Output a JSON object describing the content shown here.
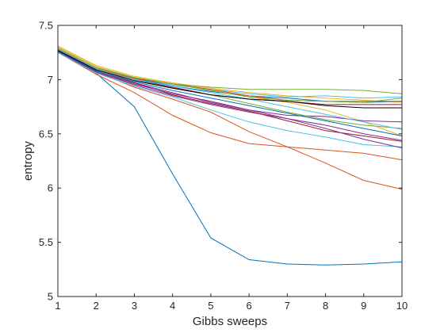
{
  "chart_data": {
    "type": "line",
    "title": "",
    "xlabel": "Gibbs sweeps",
    "ylabel": "entropy",
    "xlim": [
      1,
      10
    ],
    "ylim": [
      5,
      7.5
    ],
    "xticks": [
      "1",
      "2",
      "3",
      "4",
      "5",
      "6",
      "7",
      "8",
      "9",
      "10"
    ],
    "yticks": [
      "5",
      "5.5",
      "6",
      "6.5",
      "7",
      "7.5"
    ],
    "grid": false,
    "legend": "none",
    "x": [
      1,
      2,
      3,
      4,
      5,
      6,
      7,
      8,
      9,
      10
    ],
    "series": [
      {
        "color": "#0072BD",
        "values": [
          7.26,
          7.06,
          6.75,
          6.13,
          5.54,
          5.34,
          5.3,
          5.29,
          5.3,
          5.32
        ]
      },
      {
        "color": "#D95319",
        "values": [
          7.25,
          7.05,
          6.88,
          6.67,
          6.51,
          6.41,
          6.38,
          6.35,
          6.32,
          6.26
        ]
      },
      {
        "color": "#D95319",
        "values": [
          7.27,
          7.07,
          6.93,
          6.82,
          6.7,
          6.52,
          6.38,
          6.23,
          6.07,
          5.99
        ]
      },
      {
        "color": "#EDB120",
        "values": [
          7.3,
          7.12,
          7.02,
          6.96,
          6.9,
          6.84,
          6.79,
          6.72,
          6.61,
          6.48
        ]
      },
      {
        "color": "#EDB120",
        "values": [
          7.31,
          7.13,
          7.03,
          6.97,
          6.92,
          6.88,
          6.85,
          6.83,
          6.81,
          6.79
        ]
      },
      {
        "color": "#7E2F8E",
        "values": [
          7.25,
          7.08,
          6.97,
          6.88,
          6.79,
          6.72,
          6.67,
          6.66,
          6.62,
          6.61
        ]
      },
      {
        "color": "#7E2F8E",
        "values": [
          7.26,
          7.07,
          6.95,
          6.85,
          6.77,
          6.7,
          6.64,
          6.58,
          6.5,
          6.44
        ]
      },
      {
        "color": "#77AC30",
        "values": [
          7.28,
          7.11,
          7.02,
          6.96,
          6.93,
          6.91,
          6.91,
          6.91,
          6.9,
          6.87
        ]
      },
      {
        "color": "#77AC30",
        "values": [
          7.27,
          7.09,
          7.0,
          6.92,
          6.86,
          6.78,
          6.7,
          6.63,
          6.58,
          6.55
        ]
      },
      {
        "color": "#4DBEEE",
        "values": [
          7.28,
          7.1,
          7.01,
          6.95,
          6.91,
          6.87,
          6.84,
          6.85,
          6.83,
          6.84
        ]
      },
      {
        "color": "#4DBEEE",
        "values": [
          7.25,
          7.06,
          6.94,
          6.84,
          6.72,
          6.61,
          6.53,
          6.47,
          6.4,
          6.38
        ]
      },
      {
        "color": "#A2142F",
        "values": [
          7.26,
          7.08,
          6.97,
          6.86,
          6.78,
          6.71,
          6.62,
          6.53,
          6.48,
          6.43
        ]
      },
      {
        "color": "#A2142F",
        "values": [
          7.27,
          7.09,
          7.0,
          6.93,
          6.86,
          6.82,
          6.8,
          6.77,
          6.77,
          6.77
        ]
      },
      {
        "color": "#0072BD",
        "values": [
          7.28,
          7.1,
          7.01,
          6.94,
          6.89,
          6.85,
          6.83,
          6.8,
          6.79,
          6.8
        ]
      },
      {
        "color": "#0072BD",
        "values": [
          7.26,
          7.08,
          6.98,
          6.9,
          6.83,
          6.76,
          6.69,
          6.62,
          6.55,
          6.48
        ]
      },
      {
        "color": "#D95319",
        "values": [
          7.27,
          7.1,
          7.01,
          6.96,
          6.91,
          6.85,
          6.81,
          6.8,
          6.8,
          6.8
        ]
      },
      {
        "color": "#7E2F8E",
        "values": [
          7.26,
          7.07,
          6.96,
          6.87,
          6.8,
          6.72,
          6.64,
          6.55,
          6.45,
          6.37
        ]
      },
      {
        "color": "#77AC30",
        "values": [
          7.29,
          7.11,
          7.02,
          6.96,
          6.9,
          6.84,
          6.81,
          6.8,
          6.79,
          6.83
        ]
      },
      {
        "color": "#4DBEEE",
        "values": [
          7.28,
          7.1,
          7.0,
          6.94,
          6.88,
          6.82,
          6.75,
          6.68,
          6.61,
          6.54
        ]
      },
      {
        "color": "#000000",
        "values": [
          7.27,
          7.09,
          6.99,
          6.92,
          6.86,
          6.82,
          6.8,
          6.76,
          6.74,
          6.74
        ]
      }
    ]
  }
}
